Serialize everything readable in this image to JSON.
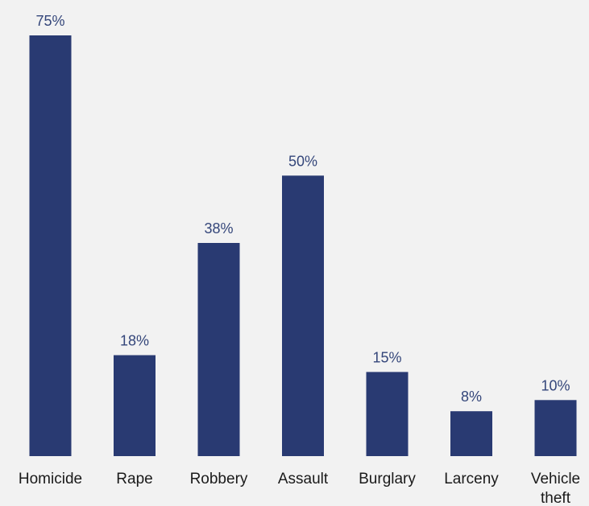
{
  "chart_data": {
    "type": "bar",
    "categories": [
      "Homicide",
      "Rape",
      "Robbery",
      "Assault",
      "Burglary",
      "Larceny",
      "Vehicle theft"
    ],
    "category_lines": [
      [
        "Homicide"
      ],
      [
        "Rape"
      ],
      [
        "Robbery"
      ],
      [
        "Assault"
      ],
      [
        "Burglary"
      ],
      [
        "Larceny"
      ],
      [
        "Vehicle",
        "theft"
      ]
    ],
    "values": [
      75,
      18,
      38,
      50,
      15,
      8,
      10
    ],
    "value_labels": [
      "75%",
      "18%",
      "38%",
      "50%",
      "15%",
      "8%",
      "10%"
    ],
    "title": "",
    "xlabel": "",
    "ylabel": "",
    "ylim": [
      0,
      75
    ],
    "grid": false,
    "legend": "none",
    "bar_color": "#293a72",
    "label_color": "#34467a",
    "background_color": "#f2f2f2"
  }
}
